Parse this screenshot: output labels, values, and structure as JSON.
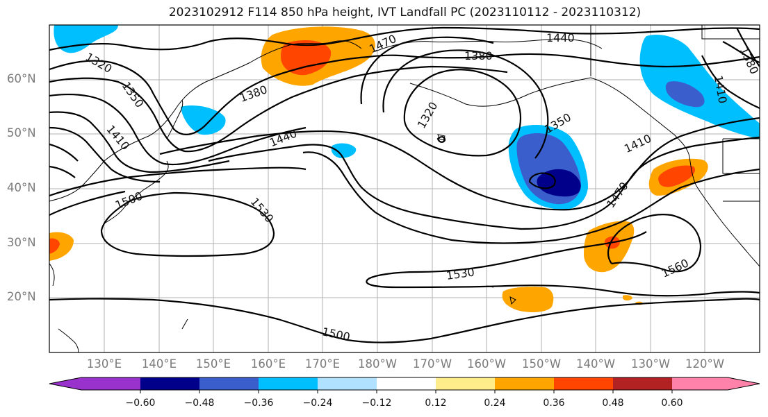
{
  "title": "2023102912 F114 850 hPa height, IVT Landfall PC (2023110112 - 2023110312)",
  "lat_labels": [
    "60°N",
    "50°N",
    "40°N",
    "30°N",
    "20°N"
  ],
  "lon_labels": [
    "130°E",
    "140°E",
    "150°E",
    "160°E",
    "170°E",
    "180°W",
    "170°W",
    "160°W",
    "150°W",
    "140°W",
    "130°W",
    "120°W"
  ],
  "contour_labels": [
    "1320",
    "1350",
    "1410",
    "1380",
    "1440",
    "1470",
    "1500",
    "1530",
    "1440",
    "1380",
    "1320",
    "1350",
    "1410",
    "1470",
    "1530",
    "1560",
    "1500",
    "1380",
    "1410"
  ],
  "colorbar": {
    "tick_labels": [
      "−0.60",
      "−0.48",
      "−0.36",
      "−0.24",
      "−0.12",
      "0.12",
      "0.24",
      "0.36",
      "0.48",
      "0.60"
    ],
    "colors": [
      "#9932cc",
      "#00008b",
      "#3a5fcd",
      "#00bfff",
      "#b0e2ff",
      "#ffffff",
      "#ffec8b",
      "#ffa500",
      "#ff4500",
      "#b22222",
      "#ff82ab"
    ]
  }
}
